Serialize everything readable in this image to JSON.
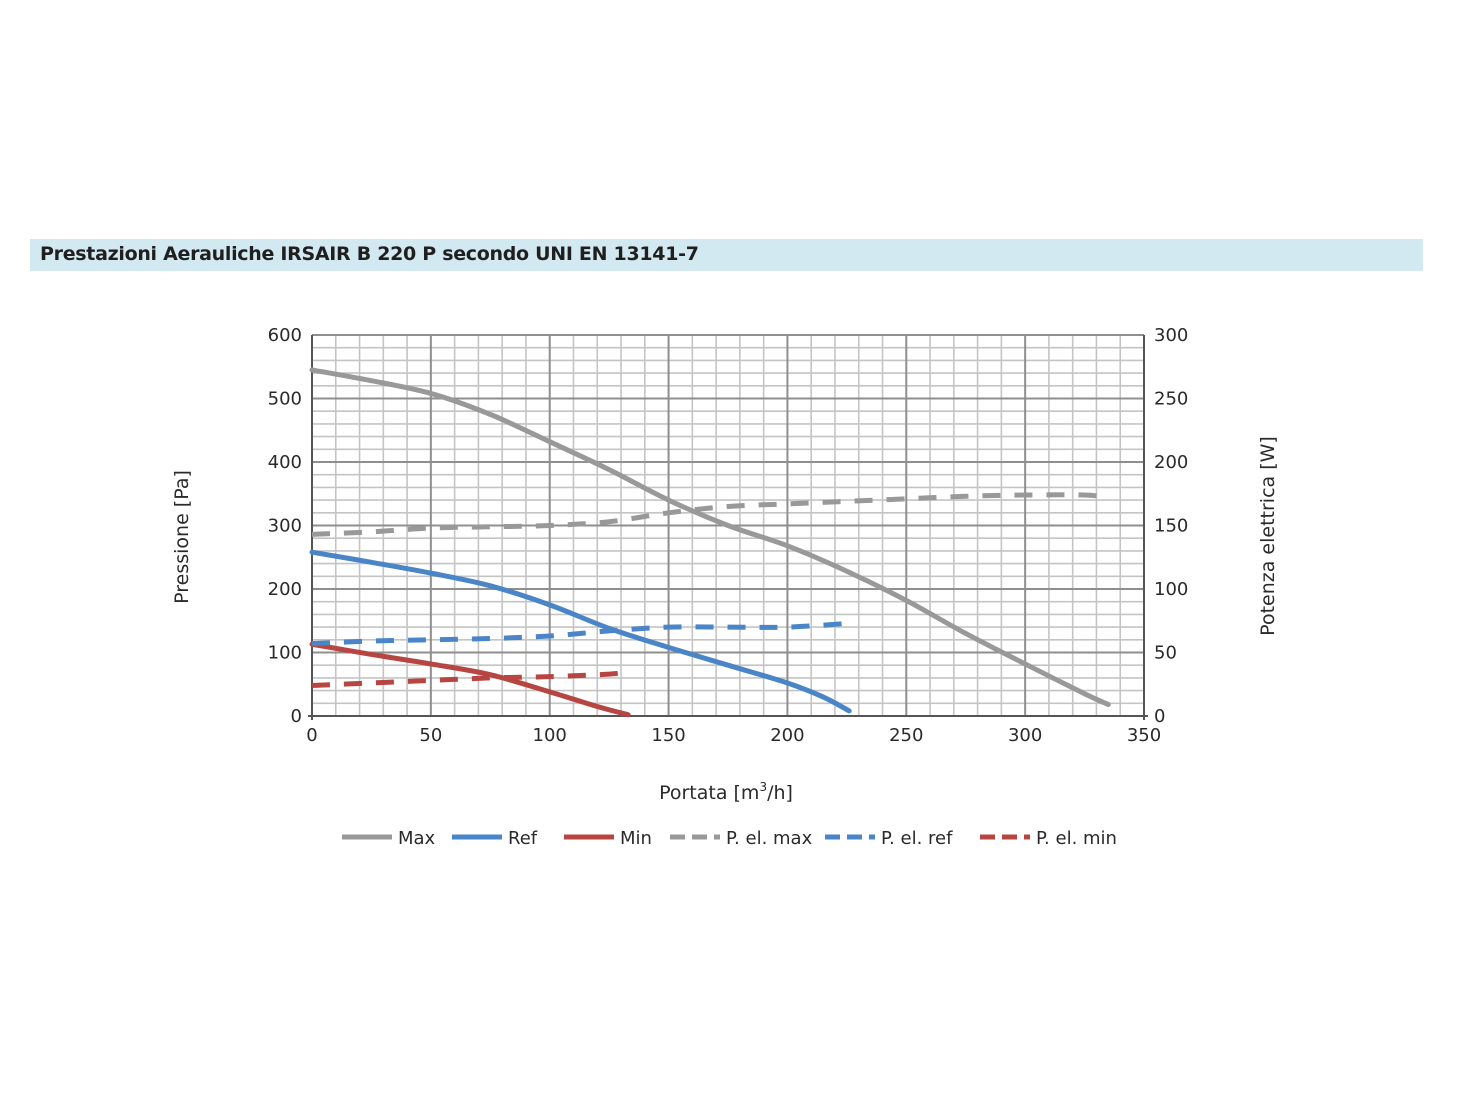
{
  "header": {
    "title": "Prestazioni Aerauliche IRSAIR B 220 P secondo UNI EN 13141-7"
  },
  "chart_data": {
    "type": "line",
    "xlabel_prefix": "Portata [m",
    "xlabel_sup": "3",
    "xlabel_suffix": "/h]",
    "ylabel": "Pressione [Pa]",
    "y2label": "Potenza elettrica [W]",
    "xlim": [
      0,
      350
    ],
    "ylim": [
      0,
      600
    ],
    "y2lim": [
      0,
      300
    ],
    "x_ticks": [
      "0",
      "50",
      "100",
      "150",
      "200",
      "250",
      "300",
      "350"
    ],
    "y_ticks": [
      "0",
      "100",
      "200",
      "300",
      "400",
      "500",
      "600"
    ],
    "y2_ticks": [
      "0",
      "50",
      "100",
      "150",
      "200",
      "250",
      "300"
    ],
    "grid": true,
    "legend_position": "bottom",
    "series": [
      {
        "name": "Max",
        "axis": "left",
        "style": "solid",
        "color": "#999999",
        "x": [
          0,
          25,
          50,
          75,
          100,
          125,
          150,
          175,
          200,
          225,
          250,
          275,
          300,
          325,
          335
        ],
        "y": [
          545,
          528,
          508,
          475,
          432,
          388,
          340,
          300,
          268,
          228,
          182,
          130,
          82,
          35,
          18
        ]
      },
      {
        "name": "Ref",
        "axis": "left",
        "style": "solid",
        "color": "#4a85c7",
        "x": [
          0,
          25,
          50,
          75,
          100,
          125,
          150,
          175,
          200,
          215,
          226
        ],
        "y": [
          258,
          242,
          225,
          205,
          175,
          138,
          108,
          80,
          52,
          30,
          8
        ]
      },
      {
        "name": "Min",
        "axis": "left",
        "style": "solid",
        "color": "#b74642",
        "x": [
          0,
          25,
          50,
          75,
          100,
          120,
          133
        ],
        "y": [
          113,
          97,
          82,
          65,
          38,
          15,
          2
        ]
      },
      {
        "name": "P. el. max",
        "axis": "right",
        "style": "dashed",
        "color": "#999999",
        "x": [
          0,
          25,
          50,
          75,
          100,
          125,
          150,
          175,
          200,
          225,
          250,
          275,
          300,
          325,
          335
        ],
        "y": [
          143,
          145,
          148,
          149,
          150,
          153,
          160,
          165,
          167,
          169,
          171,
          173,
          174,
          174,
          172
        ]
      },
      {
        "name": "P. el. ref",
        "axis": "right",
        "style": "dashed",
        "color": "#4a85c7",
        "x": [
          0,
          25,
          50,
          75,
          100,
          125,
          150,
          175,
          200,
          226
        ],
        "y": [
          57,
          59,
          60,
          61,
          63,
          67,
          70,
          70,
          70,
          73
        ]
      },
      {
        "name": "P. el. min",
        "axis": "right",
        "style": "dashed",
        "color": "#b74642",
        "x": [
          0,
          25,
          50,
          75,
          100,
          125,
          133
        ],
        "y": [
          24,
          26,
          28,
          30,
          31,
          33,
          35
        ]
      }
    ]
  }
}
